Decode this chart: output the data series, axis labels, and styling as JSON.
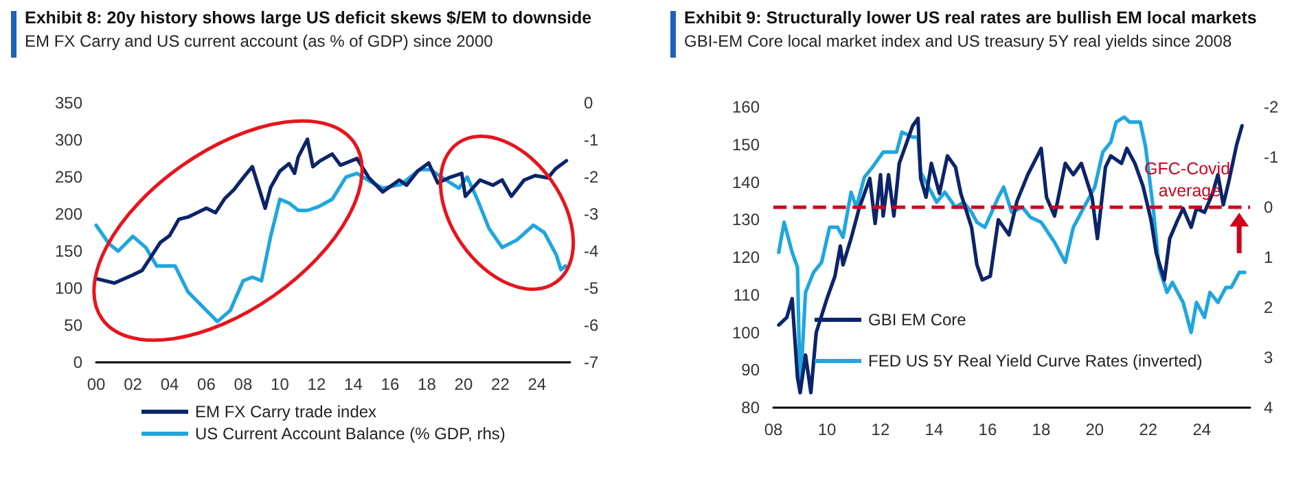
{
  "chart_data": [
    {
      "type": "line",
      "title": "Exhibit 8: 20y history shows large US deficit skews $/EM to downside",
      "subtitle": "EM FX Carry and US current account (as % of GDP) since 2000",
      "series": [
        {
          "name": "EM FX Carry trade index",
          "color": "#0c2469",
          "x": [
            2000,
            2001,
            2002,
            2002.5,
            2003,
            2003.5,
            2004,
            2004.5,
            2005,
            2005.5,
            2006,
            2006.5,
            2007,
            2007.5,
            2008,
            2008.5,
            2009,
            2009.2,
            2009.5,
            2010,
            2010.5,
            2010.8,
            2011,
            2011.5,
            2011.8,
            2012.2,
            2012.85,
            2013.3,
            2014.2,
            2014.85,
            2015.6,
            2016.5,
            2016.9,
            2017.5,
            2018.1,
            2018.6,
            2019.2,
            2019.9,
            2020.1,
            2020.9,
            2021.6,
            2022.1,
            2022.6,
            2023.3,
            2023.9,
            2024.6,
            2025.0,
            2025.6
          ],
          "values": [
            113,
            107,
            118,
            124,
            143,
            162,
            171,
            193,
            196,
            202,
            208,
            202,
            221,
            233,
            249,
            264,
            224,
            208,
            236,
            258,
            268,
            255,
            277,
            301,
            264,
            272,
            281,
            266,
            275,
            249,
            230,
            246,
            239,
            258,
            269,
            242,
            249,
            255,
            224,
            246,
            239,
            246,
            224,
            246,
            252,
            249,
            261,
            272
          ]
        },
        {
          "name": "US Current Account Balance (% GDP, rhs)",
          "color": "#1fa6e0",
          "axis": "y2",
          "x": [
            2000,
            2000.7,
            2001.2,
            2002,
            2002.7,
            2003.3,
            2003.8,
            2004.3,
            2005,
            2006,
            2006.6,
            2007.3,
            2008,
            2008.5,
            2009,
            2009.5,
            2010,
            2010.5,
            2011,
            2011.5,
            2012.1,
            2012.85,
            2013.6,
            2014.2,
            2014.85,
            2015.6,
            2016.6,
            2017.6,
            2018.2,
            2019.1,
            2019.75,
            2020.2,
            2020.75,
            2021.4,
            2022.1,
            2022.9,
            2023.8,
            2024.4,
            2025.05,
            2025.3,
            2025.55
          ],
          "values": [
            -3.3,
            -3.8,
            -4.0,
            -3.6,
            -3.9,
            -4.4,
            -4.4,
            -4.4,
            -5.1,
            -5.6,
            -5.9,
            -5.6,
            -4.8,
            -4.7,
            -4.8,
            -3.6,
            -2.6,
            -2.7,
            -2.9,
            -2.9,
            -2.8,
            -2.6,
            -2.0,
            -1.9,
            -2.1,
            -2.3,
            -2.2,
            -1.8,
            -1.8,
            -2.1,
            -2.3,
            -2.0,
            -2.6,
            -3.4,
            -3.9,
            -3.7,
            -3.3,
            -3.5,
            -4.1,
            -4.5,
            -4.4
          ]
        }
      ],
      "xlim": [
        2000,
        2025.8
      ],
      "xticks": [
        {
          "value": 2000,
          "label": "00"
        },
        {
          "value": 2002,
          "label": "02"
        },
        {
          "value": 2004,
          "label": "04"
        },
        {
          "value": 2006,
          "label": "06"
        },
        {
          "value": 2008,
          "label": "08"
        },
        {
          "value": 2010,
          "label": "10"
        },
        {
          "value": 2012,
          "label": "12"
        },
        {
          "value": 2014,
          "label": "14"
        },
        {
          "value": 2016,
          "label": "16"
        },
        {
          "value": 2018,
          "label": "18"
        },
        {
          "value": 2020,
          "label": "20"
        },
        {
          "value": 2022,
          "label": "22"
        },
        {
          "value": 2024,
          "label": "24"
        }
      ],
      "ylim": [
        0,
        350
      ],
      "yticks": [
        0,
        50,
        100,
        150,
        200,
        250,
        300,
        350
      ],
      "y2lim": [
        -7,
        0
      ],
      "y2ticks": [
        -7,
        -6,
        -5,
        -4,
        -3,
        -2,
        -1,
        0
      ],
      "legend": "bottom",
      "grid": false,
      "marker": "none",
      "line_style": "solid"
    },
    {
      "type": "line",
      "title": "Exhibit 9: Structurally lower US real rates are bullish EM local markets",
      "subtitle": "GBI-EM Core local market index and US treasury 5Y real yields since 2008",
      "series": [
        {
          "name": "GBI EM Core",
          "color": "#0c2469",
          "x": [
            2008.2,
            2008.5,
            2008.7,
            2008.9,
            2009.0,
            2009.2,
            2009.4,
            2009.6,
            2010.0,
            2010.3,
            2010.5,
            2010.6,
            2010.9,
            2011.2,
            2011.6,
            2011.8,
            2012.0,
            2012.1,
            2012.3,
            2012.5,
            2012.7,
            2013.0,
            2013.2,
            2013.4,
            2013.5,
            2013.7,
            2013.9,
            2014.2,
            2014.5,
            2014.8,
            2015.0,
            2015.4,
            2015.6,
            2015.8,
            2016.1,
            2016.4,
            2016.8,
            2017.1,
            2017.5,
            2018.0,
            2018.2,
            2018.5,
            2018.9,
            2019.2,
            2019.5,
            2019.9,
            2020.1,
            2020.4,
            2020.6,
            2021.0,
            2021.2,
            2021.5,
            2021.8,
            2022.1,
            2022.3,
            2022.6,
            2022.8,
            2023.1,
            2023.3,
            2023.6,
            2023.8,
            2024.1,
            2024.4,
            2024.6,
            2024.8,
            2025.0,
            2025.3,
            2025.5
          ],
          "values": [
            102,
            104,
            109,
            88,
            84,
            94,
            84,
            100,
            109,
            115,
            123,
            118,
            125,
            133,
            141,
            129,
            142,
            131,
            142,
            131,
            145,
            151,
            155,
            157,
            141,
            136,
            145,
            137,
            147,
            144,
            137,
            128,
            118,
            114,
            115,
            130,
            126,
            135,
            142,
            149,
            136,
            131,
            145,
            142,
            145,
            136,
            125,
            144,
            147,
            145,
            149,
            145,
            139,
            130,
            121,
            114,
            125,
            130,
            133,
            128,
            133,
            132,
            137,
            142,
            134,
            140,
            150,
            155
          ]
        },
        {
          "name": "FED US 5Y Real Yield Curve Rates (inverted)",
          "color": "#1fa6e0",
          "axis": "y2",
          "x": [
            2008.2,
            2008.4,
            2008.7,
            2008.9,
            2009.0,
            2009.2,
            2009.5,
            2009.8,
            2010.1,
            2010.4,
            2010.6,
            2010.9,
            2011.1,
            2011.4,
            2011.7,
            2012.1,
            2012.6,
            2012.8,
            2013.2,
            2013.4,
            2013.5,
            2013.7,
            2014.1,
            2014.4,
            2014.8,
            2015.1,
            2015.4,
            2015.6,
            2015.9,
            2016.4,
            2016.6,
            2016.9,
            2017.3,
            2017.6,
            2018.0,
            2018.5,
            2018.9,
            2019.2,
            2019.6,
            2020.0,
            2020.3,
            2020.6,
            2020.8,
            2021.1,
            2021.3,
            2021.7,
            2021.9,
            2022.2,
            2022.4,
            2022.7,
            2022.9,
            2023.3,
            2023.6,
            2023.8,
            2024.1,
            2024.3,
            2024.6,
            2024.9,
            2025.1,
            2025.4,
            2025.6
          ],
          "values": [
            0.9,
            0.3,
            0.9,
            1.2,
            3.7,
            1.7,
            1.3,
            1.1,
            0.4,
            0.4,
            0.6,
            -0.3,
            0.0,
            -0.6,
            -0.8,
            -1.1,
            -1.1,
            -1.5,
            -1.4,
            -1.4,
            -0.7,
            -0.5,
            -0.1,
            -0.3,
            0.0,
            -0.1,
            0.1,
            0.3,
            0.4,
            -0.2,
            -0.4,
            0.1,
            0.0,
            0.2,
            0.3,
            0.7,
            1.1,
            0.4,
            0.0,
            -0.4,
            -1.1,
            -1.3,
            -1.7,
            -1.8,
            -1.7,
            -1.7,
            -1.2,
            0.1,
            1.2,
            1.7,
            1.5,
            1.9,
            2.5,
            1.9,
            2.2,
            1.7,
            1.9,
            1.6,
            1.6,
            1.3,
            1.3
          ]
        }
      ],
      "xlim": [
        2008,
        2025.8
      ],
      "xticks": [
        {
          "value": 2008,
          "label": "08"
        },
        {
          "value": 2010,
          "label": "10"
        },
        {
          "value": 2012,
          "label": "12"
        },
        {
          "value": 2014,
          "label": "14"
        },
        {
          "value": 2016,
          "label": "16"
        },
        {
          "value": 2018,
          "label": "18"
        },
        {
          "value": 2020,
          "label": "20"
        },
        {
          "value": 2022,
          "label": "22"
        },
        {
          "value": 2024,
          "label": "24"
        }
      ],
      "ylim": [
        80,
        160
      ],
      "yticks": [
        80,
        90,
        100,
        110,
        120,
        130,
        140,
        150,
        160
      ],
      "y2lim": [
        4,
        -2
      ],
      "y2ticks": [
        -2,
        -1,
        0,
        1,
        2,
        3,
        4
      ],
      "ref_lines": [
        {
          "axis": "y2",
          "value": 0,
          "label": "GFC-Covid average",
          "color": "#d0021b",
          "line_style": "dashed"
        }
      ],
      "legend": "bottom left",
      "grid": false,
      "marker": "none",
      "line_style": "solid"
    }
  ]
}
